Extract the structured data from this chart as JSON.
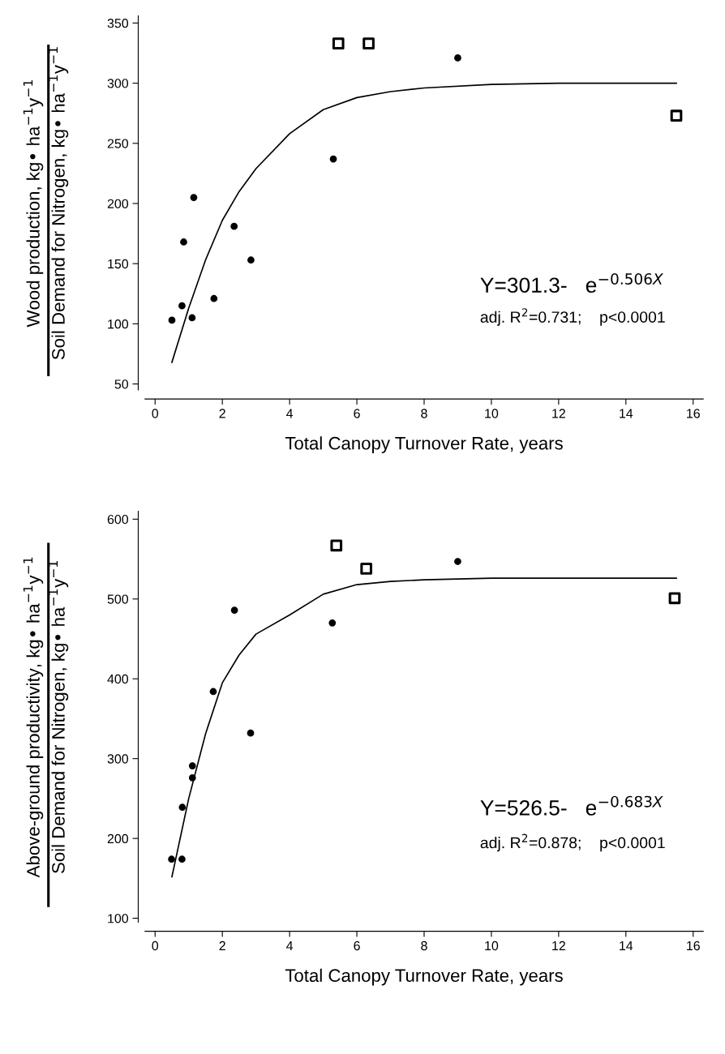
{
  "chart_data": [
    {
      "type": "scatter",
      "xlabel": "Total Canopy Turnover Rate, years",
      "ylabel": "Wood production, kg• ha$^{−1}$y$^{−1}$\nSoil Demand for Nitrogen, kg• ha$^{−1}$y$^{−1}$",
      "xlim": [
        -0.3,
        16.3
      ],
      "xticks": [
        0,
        2,
        4,
        6,
        8,
        10,
        12,
        14,
        16
      ],
      "ylim": [
        45,
        356
      ],
      "yticks": [
        50,
        100,
        150,
        200,
        250,
        300,
        350
      ],
      "grid": false,
      "legend": false,
      "series": [
        {
          "type": "scatter",
          "marker": "circle",
          "color": "#000000",
          "x": [
            0.5,
            0.8,
            0.85,
            1.1,
            1.15,
            1.75,
            2.35,
            2.85,
            5.3,
            9.0
          ],
          "values": [
            103,
            115,
            168,
            105,
            205,
            121,
            181,
            153,
            237,
            321
          ]
        },
        {
          "type": "scatter",
          "marker": "square",
          "color": "#000000",
          "x": [
            5.45,
            6.35,
            15.5
          ],
          "values": [
            333,
            333,
            273
          ]
        },
        {
          "type": "line",
          "marker": "none",
          "line_style": "solid",
          "color": "#000000",
          "x": [
            0.5,
            1,
            1.5,
            2,
            2.5,
            3,
            4,
            5,
            6,
            7,
            8,
            10,
            12,
            15.5
          ],
          "values": [
            68,
            113,
            153,
            186,
            210,
            229,
            258,
            278,
            288,
            293,
            296,
            299,
            300,
            300
          ]
        }
      ],
      "annotations": [
        "Y=301.3-   e$^{−0.506X}$",
        "adj. R$^{2}$=0.731;    p<0.0001"
      ]
    },
    {
      "type": "scatter",
      "xlabel": "Total Canopy Turnover Rate, years",
      "ylabel": "Above-ground productivity, kg• ha$^{−1}$y$^{−1}$\nSoil Demand for Nitrogen, kg• ha$^{−1}$y$^{−1}$",
      "xlim": [
        -0.3,
        16.3
      ],
      "xticks": [
        0,
        2,
        4,
        6,
        8,
        10,
        12,
        14,
        16
      ],
      "ylim": [
        95,
        610
      ],
      "yticks": [
        100,
        200,
        300,
        400,
        500,
        600
      ],
      "grid": false,
      "legend": false,
      "series": [
        {
          "type": "scatter",
          "marker": "circle",
          "color": "#000000",
          "x": [
            0.49,
            0.8,
            0.81,
            1.11,
            1.11,
            1.73,
            2.36,
            2.84,
            5.27,
            9.0
          ],
          "values": [
            174,
            174,
            239,
            291,
            276,
            384,
            486,
            332,
            470,
            547
          ]
        },
        {
          "type": "scatter",
          "marker": "square",
          "color": "#000000",
          "x": [
            5.39,
            6.28,
            15.45
          ],
          "values": [
            567,
            538,
            501
          ]
        },
        {
          "type": "line",
          "marker": "none",
          "line_style": "solid",
          "color": "#000000",
          "x": [
            0.5,
            1,
            1.5,
            2,
            2.5,
            3,
            4,
            5,
            6,
            7,
            8,
            10,
            12,
            15.5
          ],
          "values": [
            152,
            250,
            331,
            395,
            430,
            456,
            480,
            506,
            518,
            522,
            524,
            526,
            526,
            526
          ]
        }
      ],
      "annotations": [
        "Y=526.5-   e$^{−0.683X}$",
        "adj. R$^{2}$=0.878;    p<0.0001"
      ]
    }
  ]
}
